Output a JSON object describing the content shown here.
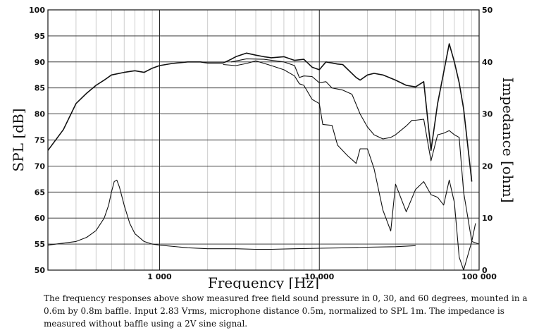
{
  "chart_data": {
    "type": "line",
    "title": "",
    "xlabel": "Frequency [Hz]",
    "ylabel": "SPL [dB]",
    "y2label": "Impedance [ohm]",
    "xscale": "log",
    "xlim": [
      200,
      100000
    ],
    "ylim": [
      50,
      100
    ],
    "y2lim": [
      0,
      50
    ],
    "x_tick_labels": [
      {
        "x": 1000,
        "label": "1 000"
      },
      {
        "x": 10000,
        "label": "10 000"
      },
      {
        "x": 100000,
        "label": "100 000"
      }
    ],
    "y_ticks": [
      50,
      55,
      60,
      65,
      70,
      75,
      80,
      85,
      90,
      95,
      100
    ],
    "y2_ticks": [
      0,
      10,
      20,
      30,
      40,
      50
    ],
    "grid": true,
    "legend": "none",
    "series": [
      {
        "axis": "left",
        "points": [
          [
            200,
            73
          ],
          [
            250,
            77
          ],
          [
            300,
            82
          ],
          [
            350,
            84
          ],
          [
            400,
            85.5
          ],
          [
            450,
            86.5
          ],
          [
            500,
            87.5
          ],
          [
            600,
            88
          ],
          [
            700,
            88.3
          ],
          [
            800,
            88
          ],
          [
            900,
            88.8
          ],
          [
            1000,
            89.3
          ],
          [
            1200,
            89.7
          ],
          [
            1500,
            90
          ],
          [
            1800,
            90
          ],
          [
            2000,
            89.8
          ],
          [
            2500,
            89.8
          ],
          [
            2800,
            90.5
          ],
          [
            3000,
            91
          ],
          [
            3500,
            91.7
          ],
          [
            4000,
            91.3
          ],
          [
            4500,
            91
          ],
          [
            5000,
            90.8
          ],
          [
            6000,
            91
          ],
          [
            7000,
            90.3
          ],
          [
            8000,
            90.5
          ],
          [
            9000,
            89
          ],
          [
            10000,
            88.5
          ],
          [
            11000,
            90
          ],
          [
            12000,
            89.8
          ],
          [
            13000,
            89.6
          ],
          [
            14000,
            89.5
          ],
          [
            17000,
            87
          ],
          [
            18000,
            86.5
          ],
          [
            20000,
            87.5
          ],
          [
            22000,
            87.8
          ],
          [
            25000,
            87.5
          ],
          [
            30000,
            86.5
          ],
          [
            35000,
            85.5
          ],
          [
            40000,
            85.2
          ],
          [
            45000,
            86.2
          ],
          [
            50000,
            73
          ],
          [
            55000,
            82
          ],
          [
            60000,
            88
          ],
          [
            65000,
            93.5
          ],
          [
            70000,
            90
          ],
          [
            75000,
            86
          ],
          [
            80000,
            81
          ],
          [
            90000,
            67
          ]
        ]
      },
      {
        "axis": "left",
        "points": [
          [
            2800,
            90
          ],
          [
            3500,
            90.6
          ],
          [
            4500,
            90.5
          ],
          [
            6000,
            90
          ],
          [
            7000,
            89.3
          ],
          [
            7500,
            87
          ],
          [
            8000,
            87.3
          ],
          [
            9000,
            87.2
          ],
          [
            10000,
            86
          ],
          [
            11000,
            86.2
          ],
          [
            12000,
            85
          ],
          [
            14000,
            84.6
          ],
          [
            16000,
            83.8
          ],
          [
            18000,
            80
          ],
          [
            20000,
            77.5
          ],
          [
            22000,
            76
          ],
          [
            25000,
            75.2
          ],
          [
            28000,
            75.5
          ],
          [
            30000,
            76
          ],
          [
            35000,
            77.7
          ],
          [
            38000,
            78.8
          ],
          [
            40000,
            78.8
          ],
          [
            45000,
            79
          ],
          [
            50000,
            71
          ],
          [
            55000,
            76
          ],
          [
            60000,
            76.3
          ],
          [
            65000,
            76.8
          ],
          [
            70000,
            76
          ],
          [
            75000,
            75.5
          ],
          [
            80000,
            65
          ],
          [
            90000,
            55.5
          ],
          [
            100000,
            55
          ]
        ]
      },
      {
        "axis": "left",
        "points": [
          [
            2500,
            89.5
          ],
          [
            3000,
            89.3
          ],
          [
            3500,
            89.7
          ],
          [
            4000,
            90.2
          ],
          [
            5000,
            89.3
          ],
          [
            6000,
            88.5
          ],
          [
            7000,
            87.3
          ],
          [
            7500,
            85.8
          ],
          [
            8000,
            85.5
          ],
          [
            9000,
            82.8
          ],
          [
            10000,
            82
          ],
          [
            10500,
            78
          ],
          [
            12000,
            77.8
          ],
          [
            13000,
            74
          ],
          [
            15000,
            72
          ],
          [
            17000,
            70.5
          ],
          [
            18000,
            73.3
          ],
          [
            20000,
            73.3
          ],
          [
            22000,
            69.5
          ],
          [
            25000,
            61.5
          ],
          [
            28000,
            57.5
          ],
          [
            30000,
            66.5
          ],
          [
            35000,
            61.2
          ],
          [
            40000,
            65.5
          ],
          [
            45000,
            67
          ],
          [
            50000,
            64.5
          ],
          [
            55000,
            64
          ],
          [
            60000,
            62.5
          ],
          [
            65000,
            67.3
          ],
          [
            70000,
            63
          ],
          [
            75000,
            52.5
          ],
          [
            80000,
            50
          ],
          [
            90000,
            55.5
          ],
          [
            95000,
            59
          ]
        ]
      },
      {
        "axis": "right",
        "points": [
          [
            200,
            4.8
          ],
          [
            300,
            5.5
          ],
          [
            350,
            6.3
          ],
          [
            400,
            7.6
          ],
          [
            450,
            10
          ],
          [
            480,
            12.5
          ],
          [
            500,
            15
          ],
          [
            520,
            17
          ],
          [
            540,
            17.3
          ],
          [
            560,
            16
          ],
          [
            600,
            12.5
          ],
          [
            650,
            9
          ],
          [
            700,
            7
          ],
          [
            800,
            5.5
          ],
          [
            900,
            5
          ],
          [
            1000,
            4.8
          ],
          [
            1500,
            4.3
          ],
          [
            2000,
            4.1
          ],
          [
            3000,
            4.1
          ],
          [
            4000,
            4
          ],
          [
            5000,
            4
          ],
          [
            7000,
            4.1
          ],
          [
            10000,
            4.2
          ],
          [
            15000,
            4.3
          ],
          [
            20000,
            4.4
          ],
          [
            30000,
            4.5
          ],
          [
            40000,
            4.7
          ]
        ]
      }
    ]
  },
  "caption": "The frequency responses above show measured free field sound pressure in 0, 30, and 60 degrees, mounted in a 0.6m by 0.8m baffle. Input 2.83 Vrms, microphone distance 0.5m, normalized to SPL 1m. The impedance is measured without baffle using a 2V sine signal."
}
